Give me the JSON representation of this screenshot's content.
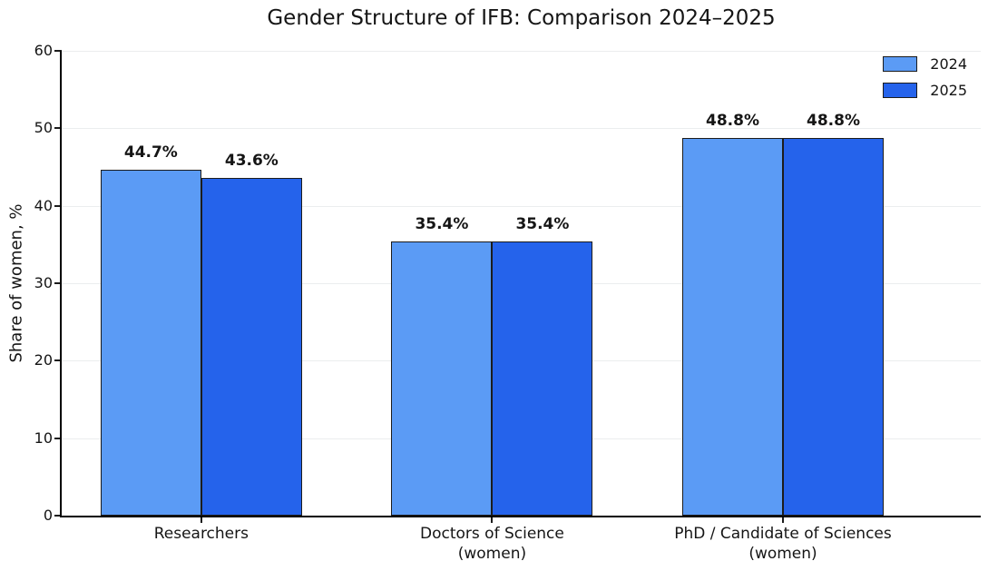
{
  "chart_data": {
    "type": "bar",
    "title": "Gender Structure of IFB: Comparison 2024–2025",
    "xlabel": "",
    "ylabel": "Share of women, %",
    "ylim": [
      0,
      60
    ],
    "yticks": [
      0,
      10,
      20,
      30,
      40,
      50,
      60
    ],
    "grid": "horizontal",
    "legend_position": "upper right",
    "categories": [
      "Researchers",
      "Doctors of Science\n(women)",
      "PhD / Candidate of Sciences\n(women)"
    ],
    "series": [
      {
        "name": "2024",
        "color": "#5B9BF5",
        "values": [
          44.7,
          35.4,
          48.8
        ],
        "value_labels": [
          "44.7%",
          "35.4%",
          "48.8%"
        ]
      },
      {
        "name": "2025",
        "color": "#2563EB",
        "values": [
          43.6,
          35.4,
          48.8
        ],
        "value_labels": [
          "43.6%",
          "35.4%",
          "48.8%"
        ]
      }
    ],
    "bar_edge_color": "#1c1c1c",
    "grid_color": "#ebedee"
  }
}
